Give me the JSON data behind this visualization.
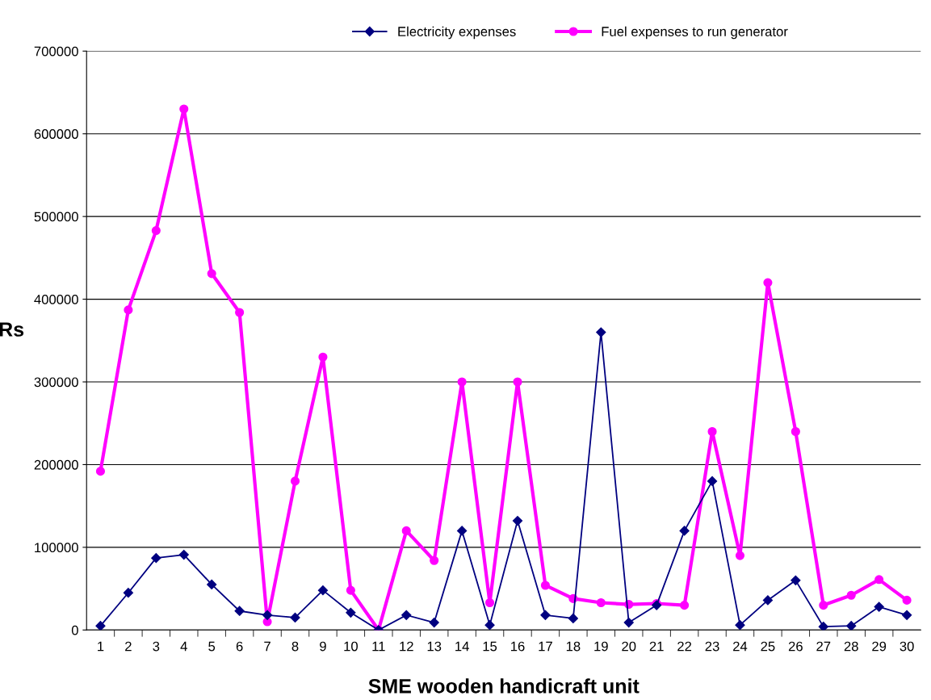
{
  "chart_data": {
    "type": "line",
    "xlabel": "SME wooden handicraft unit",
    "ylabel": "Rs",
    "categories": [
      "1",
      "2",
      "3",
      "4",
      "5",
      "6",
      "7",
      "8",
      "9",
      "10",
      "11",
      "12",
      "13",
      "14",
      "15",
      "16",
      "17",
      "18",
      "19",
      "20",
      "21",
      "22",
      "23",
      "24",
      "25",
      "26",
      "27",
      "28",
      "29",
      "30"
    ],
    "series": [
      {
        "name": "Electricity expenses",
        "color": "#000080",
        "marker": "diamond",
        "values": [
          5000,
          45000,
          87000,
          91000,
          55000,
          23000,
          18000,
          15000,
          48000,
          21000,
          0,
          18000,
          9000,
          120000,
          6000,
          132000,
          18000,
          14000,
          360000,
          9000,
          30000,
          120000,
          180000,
          6000,
          36000,
          60000,
          4000,
          5000,
          28000,
          18000
        ]
      },
      {
        "name": "Fuel expenses to run generator",
        "color": "#ff00ff",
        "marker": "circle",
        "values": [
          192000,
          387000,
          483000,
          630000,
          431000,
          384000,
          10000,
          180000,
          330000,
          48000,
          0,
          120000,
          84000,
          300000,
          33000,
          300000,
          54000,
          38000,
          33000,
          31000,
          32000,
          30000,
          240000,
          90000,
          420000,
          240000,
          30000,
          42000,
          61000,
          36000
        ]
      }
    ],
    "ylim": [
      0,
      700000
    ],
    "yticks": [
      0,
      100000,
      200000,
      300000,
      400000,
      500000,
      600000,
      700000
    ],
    "grid": "y",
    "legend": "top"
  }
}
